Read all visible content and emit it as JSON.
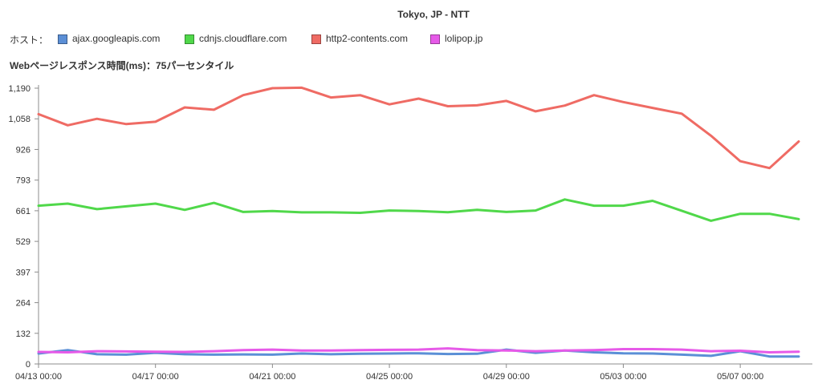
{
  "legend": {
    "label": "ホスト："
  },
  "colors": {
    "ajax": "#5b8fd6",
    "cdnjs": "#50d84a",
    "http2": "#ef6b64",
    "lolipop": "#e65ae8",
    "axis": "#8c8c8c",
    "text": "#333333"
  },
  "chart_data": {
    "type": "line",
    "title": "Tokyo, JP - NTT",
    "ylabel": "Webページレスポンス時間(ms)：75パーセンタイル",
    "xlabel": "",
    "ylim": [
      0,
      1190
    ],
    "y_ticks": [
      "0",
      "132",
      "264",
      "397",
      "529",
      "661",
      "793",
      "926",
      "1,058",
      "1,190"
    ],
    "x_ticks": [
      "04/13 00:00",
      "04/17 00:00",
      "04/21 00:00",
      "04/25 00:00",
      "04/29 00:00",
      "05/03 00:00",
      "05/07 00:00"
    ],
    "x": [
      "04/13",
      "04/14",
      "04/15",
      "04/16",
      "04/17",
      "04/18",
      "04/19",
      "04/20",
      "04/21",
      "04/22",
      "04/23",
      "04/24",
      "04/25",
      "04/26",
      "04/27",
      "04/28",
      "04/29",
      "04/30",
      "05/01",
      "05/02",
      "05/03",
      "05/04",
      "05/05",
      "05/06",
      "05/07",
      "05/08",
      "05/09"
    ],
    "series": [
      {
        "name": "ajax.googleapis.com",
        "color": "#5b8fd6",
        "values": [
          45,
          60,
          42,
          40,
          48,
          42,
          40,
          41,
          40,
          45,
          42,
          44,
          45,
          46,
          43,
          44,
          62,
          48,
          58,
          50,
          46,
          45,
          40,
          35,
          55,
          32,
          32
        ]
      },
      {
        "name": "cdnjs.cloudflare.com",
        "color": "#50d84a",
        "values": [
          683,
          692,
          668,
          680,
          692,
          665,
          695,
          656,
          660,
          654,
          654,
          652,
          662,
          660,
          655,
          665,
          656,
          662,
          710,
          683,
          683,
          704,
          661,
          618,
          648,
          648,
          625
        ]
      },
      {
        "name": "http2-contents.com",
        "color": "#ef6b64",
        "values": [
          1078,
          1030,
          1058,
          1035,
          1045,
          1107,
          1097,
          1160,
          1190,
          1192,
          1150,
          1160,
          1120,
          1145,
          1112,
          1116,
          1135,
          1090,
          1115,
          1160,
          1130,
          1105,
          1080,
          985,
          875,
          845,
          960
        ]
      },
      {
        "name": "lolipop.jp",
        "color": "#e65ae8",
        "values": [
          52,
          50,
          55,
          54,
          53,
          52,
          55,
          60,
          62,
          58,
          58,
          60,
          61,
          62,
          67,
          60,
          58,
          55,
          58,
          60,
          64,
          64,
          62,
          55,
          57,
          50,
          53
        ]
      }
    ]
  }
}
